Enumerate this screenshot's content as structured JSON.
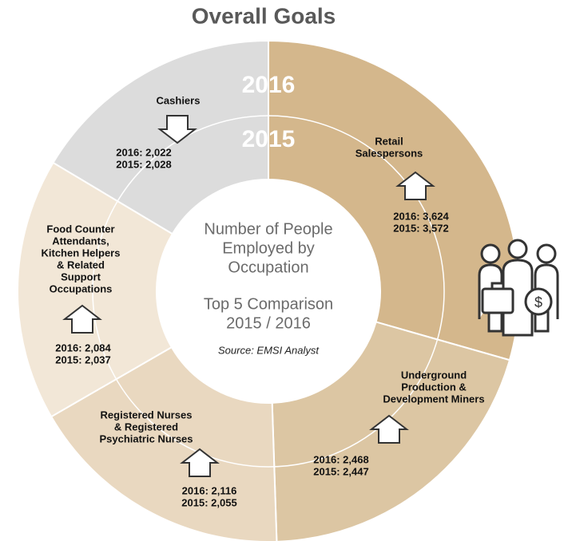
{
  "chart_data": {
    "type": "donut",
    "title": "Overall Goals",
    "center_text": [
      "Number of People",
      "Employed by",
      "Occupation",
      "Top 5 Comparison",
      "2015 / 2016"
    ],
    "source": "Source: EMSI Analyst",
    "categories": [
      [
        "Retail",
        "Salespersons"
      ],
      [
        "Underground",
        "Production &",
        "Development Miners"
      ],
      [
        "Registered Nurses",
        "& Registered",
        "Psychiatric Nurses"
      ],
      [
        "Food Counter",
        "Attendants,",
        "Kitchen Helpers",
        "& Related",
        "Support",
        "Occupations"
      ],
      [
        "Cashiers"
      ]
    ],
    "colors": [
      "#d4b78c",
      "#dcc6a3",
      "#e9d8c0",
      "#f2e7d7",
      "#dcdcdc"
    ],
    "series": [
      {
        "name": "2016",
        "values": [
          3624,
          2468,
          2116,
          2084,
          2022
        ],
        "value_labels": [
          "2016: 3,624",
          "2016: 2,468",
          "2016: 2,116",
          "2016: 2,084",
          "2016: 2,022"
        ]
      },
      {
        "name": "2015",
        "values": [
          3572,
          2447,
          2055,
          2037,
          2028
        ],
        "value_labels": [
          "2015: 3,572",
          "2015: 2,447",
          "2015: 2,055",
          "2015: 2,037",
          "2015: 2,028"
        ]
      }
    ]
  }
}
